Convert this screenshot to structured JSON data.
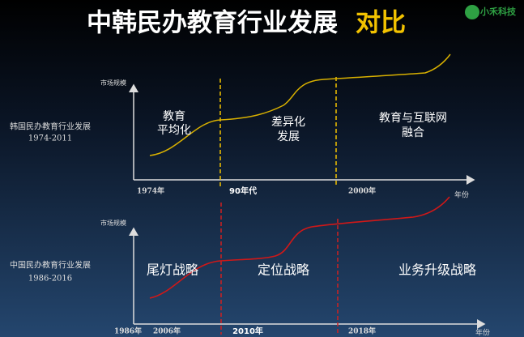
{
  "header": {
    "title": "中韩民办教育行业发展",
    "title_highlight": "对比",
    "logo": "小禾科技"
  },
  "panels": [
    {
      "y_axis_label": "市场规模",
      "x_axis_label": "年份",
      "side_label": "韩国民办教育行业发展",
      "side_period": "1974-2011",
      "phases": [
        {
          "lines": [
            "教育",
            "平均化"
          ]
        },
        {
          "lines": [
            "差异化",
            "发展"
          ]
        },
        {
          "lines": [
            "教育与互联网",
            "融合"
          ]
        }
      ],
      "x_labels": [
        "1974年",
        "90年代",
        "2000年"
      ]
    },
    {
      "y_axis_label": "市场规模",
      "x_axis_label": "年份",
      "side_label": "中国民办教育行业发展",
      "side_period": "1986-2016",
      "phases": [
        {
          "lines": [
            "尾灯战略"
          ]
        },
        {
          "lines": [
            "定位战略"
          ]
        },
        {
          "lines": [
            "业务升级战略"
          ]
        }
      ],
      "x_labels": [
        "1986年",
        "2006年",
        "2010年",
        "2018年"
      ]
    }
  ]
}
